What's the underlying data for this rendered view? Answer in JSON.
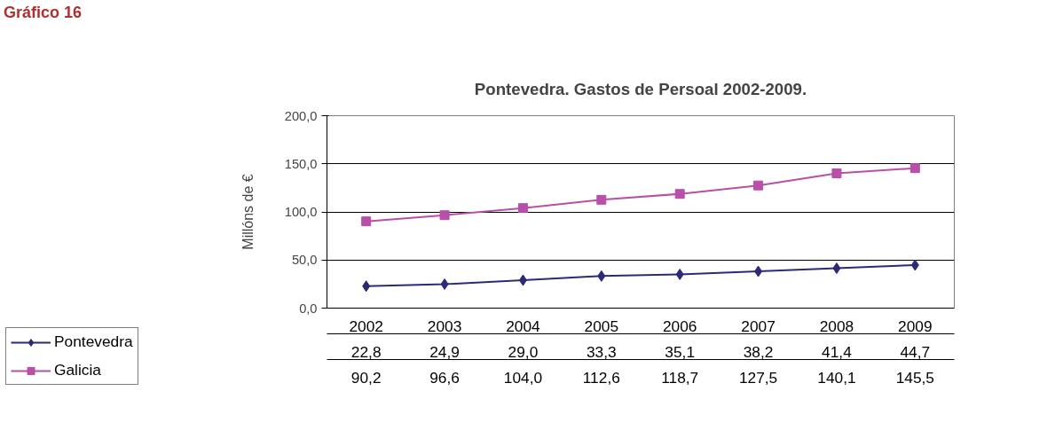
{
  "chart_data": {
    "type": "line",
    "title": "Pontevedra. Gastos de Persoal 2002-2009.",
    "ylabel": "Millóns de €",
    "annotations": [
      "Gráfico 16"
    ],
    "categories": [
      "2002",
      "2003",
      "2004",
      "2005",
      "2006",
      "2007",
      "2008",
      "2009"
    ],
    "series": [
      {
        "name": "Pontevedra",
        "color": "#2b2a77",
        "marker": "diamond",
        "values": [
          22.8,
          24.9,
          29.0,
          33.3,
          35.1,
          38.2,
          41.4,
          44.7
        ],
        "value_labels": [
          "22,8",
          "24,9",
          "29,0",
          "33,3",
          "35,1",
          "38,2",
          "41,4",
          "44,7"
        ]
      },
      {
        "name": "Galicia",
        "color": "#b94fa9",
        "marker": "square",
        "values": [
          90.2,
          96.6,
          104.0,
          112.6,
          118.7,
          127.5,
          140.1,
          145.5
        ],
        "value_labels": [
          "90,2",
          "96,6",
          "104,0",
          "112,6",
          "118,7",
          "127,5",
          "140,1",
          "145,5"
        ]
      }
    ],
    "ylim": [
      0,
      200
    ],
    "yticks": [
      {
        "value": 0,
        "label": "0,0"
      },
      {
        "value": 50,
        "label": "50,0"
      },
      {
        "value": 100,
        "label": "100,0"
      },
      {
        "value": 150,
        "label": "150,0"
      },
      {
        "value": 200,
        "label": "200,0"
      }
    ],
    "grid": "y",
    "legend": "bottom left",
    "line_style": "solid"
  }
}
